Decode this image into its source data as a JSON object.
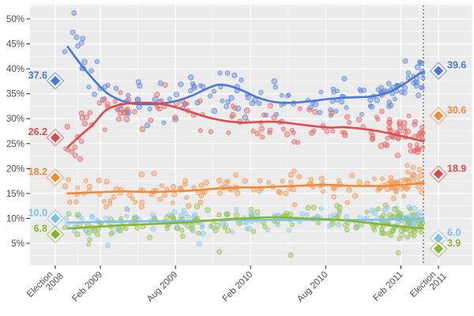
{
  "theme": {
    "background": "#ffffff",
    "panel_background": "#ebebeb",
    "grid_major_color": "#ffffff",
    "grid_minor_color": "#ffffff",
    "axis_text_color": "#4d4d4d",
    "tick_mark_color": "#333333"
  },
  "chart_data": {
    "type": "scatter",
    "title": "",
    "x_axis": {
      "ticks": [
        {
          "month": 0,
          "label_lines": [
            "Election",
            "2008"
          ]
        },
        {
          "month": 3.6,
          "label_lines": [
            "Feb 2009"
          ]
        },
        {
          "month": 9.6,
          "label_lines": [
            "Aug 2009"
          ]
        },
        {
          "month": 15.6,
          "label_lines": [
            "Feb 2010"
          ]
        },
        {
          "month": 21.6,
          "label_lines": [
            "Aug 2010"
          ]
        },
        {
          "month": 27.6,
          "label_lines": [
            "Feb 2011"
          ]
        },
        {
          "month": 30.6,
          "label_lines": [
            "Election",
            "2011"
          ]
        }
      ],
      "minor_months": [
        1.8,
        6.6,
        12.6,
        18.6,
        24.6,
        29.1
      ],
      "domain_months": [
        -2.0,
        33.2
      ]
    },
    "y_axis": {
      "tick_values": [
        5,
        10,
        15,
        20,
        25,
        30,
        35,
        40,
        45,
        50
      ],
      "minor_values": [
        2.5,
        7.5,
        12.5,
        17.5,
        22.5,
        27.5,
        32.5,
        37.5,
        42.5,
        47.5,
        52.5
      ],
      "suffix": "%",
      "domain": [
        0.6,
        52.9
      ]
    },
    "campaign_line": {
      "month": 29.4,
      "color": "#4d4d4d"
    },
    "election_markers": {
      "left_month": 0,
      "right_month": 30.6
    },
    "trend_months": [
      1,
      2,
      3,
      4,
      5,
      6,
      7,
      8,
      9,
      10,
      11,
      12,
      13,
      14,
      15,
      16,
      17,
      18,
      19,
      20,
      21,
      22,
      23,
      24,
      25,
      26,
      27,
      28,
      29,
      29.4
    ],
    "series": [
      {
        "id": "blue",
        "color": "#4a78d2",
        "point_color": "#5f8ad8",
        "trend_values": [
          44.4,
          41.0,
          38.0,
          35.4,
          33.9,
          33.1,
          32.9,
          32.9,
          33.2,
          33.8,
          34.7,
          35.9,
          36.8,
          36.5,
          35.6,
          34.4,
          33.6,
          33.2,
          33.2,
          33.4,
          33.7,
          34.0,
          34.2,
          34.3,
          34.4,
          34.8,
          35.7,
          37.2,
          38.9,
          39.4
        ],
        "result_2008": "37.6",
        "result_2011": "39.6",
        "scatter_sd": 2.1,
        "scatter_seed": 7,
        "extra_points": [
          [
            1.5,
            51.2
          ],
          [
            1.4,
            47.3
          ],
          [
            1.7,
            46.3
          ],
          [
            2.1,
            45.2
          ],
          [
            1.8,
            44.6
          ]
        ]
      },
      {
        "id": "red",
        "color": "#df4b4b",
        "point_color": "#e46a6a",
        "trend_values": [
          24.3,
          26.6,
          28.8,
          31.6,
          32.7,
          33.1,
          33.2,
          33.1,
          32.7,
          32.0,
          31.2,
          30.4,
          29.8,
          29.4,
          29.2,
          29.3,
          29.4,
          29.3,
          29.0,
          28.7,
          28.4,
          28.2,
          28.3,
          28.1,
          27.8,
          27.4,
          26.9,
          26.3,
          25.7,
          25.5
        ],
        "result_2008": "26.2",
        "result_2011": "18.9",
        "scatter_sd": 1.9,
        "scatter_seed": 13,
        "extra_points": [
          [
            1.3,
            23.4
          ],
          [
            1.6,
            22.6
          ],
          [
            2.0,
            21.9
          ]
        ]
      },
      {
        "id": "orange",
        "color": "#f08a38",
        "point_color": "#f29b55",
        "trend_values": [
          15.0,
          15.1,
          15.2,
          15.3,
          15.4,
          15.4,
          15.3,
          15.3,
          15.4,
          15.5,
          15.6,
          15.8,
          16.0,
          16.1,
          16.2,
          16.2,
          16.3,
          16.4,
          16.5,
          16.6,
          16.7,
          16.7,
          16.6,
          16.5,
          16.5,
          16.5,
          16.6,
          16.8,
          17.0,
          17.1
        ],
        "result_2008": "18.2",
        "result_2011": "30.6",
        "scatter_sd": 1.5,
        "scatter_seed": 21,
        "extra_points": [
          [
            28.6,
            20.2
          ],
          [
            29.1,
            19.8
          ]
        ]
      },
      {
        "id": "lightblue",
        "color": "#7fc0ea",
        "point_color": "#8ec9ee",
        "trend_values": [
          9.2,
          9.2,
          9.3,
          9.3,
          9.3,
          9.4,
          9.4,
          9.4,
          9.4,
          9.5,
          9.5,
          9.6,
          9.6,
          9.7,
          9.7,
          9.7,
          9.7,
          9.7,
          9.7,
          9.7,
          9.7,
          9.7,
          9.7,
          9.7,
          9.7,
          9.7,
          9.8,
          9.8,
          9.9,
          9.9
        ],
        "result_2008": "10.0",
        "result_2011": "6.0",
        "scatter_sd": 1.1,
        "scatter_seed": 29,
        "extra_points": [
          [
            4.2,
            4.6
          ],
          [
            11.5,
            4.9
          ]
        ]
      },
      {
        "id": "green",
        "color": "#86b733",
        "point_color": "#98c450",
        "trend_values": [
          8.0,
          8.1,
          8.3,
          8.4,
          8.6,
          8.7,
          8.8,
          8.9,
          9.0,
          9.1,
          9.3,
          9.5,
          9.7,
          9.9,
          10.0,
          10.1,
          10.2,
          10.2,
          10.1,
          10.0,
          9.9,
          9.8,
          9.6,
          9.4,
          9.1,
          8.8,
          8.5,
          8.3,
          8.1,
          8.0
        ],
        "result_2008": "6.8",
        "result_2011": "3.9",
        "scatter_sd": 1.4,
        "scatter_seed": 37,
        "extra_points": [
          [
            13.1,
            3.3
          ],
          [
            18.8,
            2.6
          ],
          [
            27.4,
            3.1
          ]
        ]
      }
    ],
    "scatter": {
      "n_base": 118,
      "n_late": 30,
      "late_range": [
        26.0,
        29.4
      ],
      "x_range": [
        0.7,
        29.4
      ]
    }
  }
}
